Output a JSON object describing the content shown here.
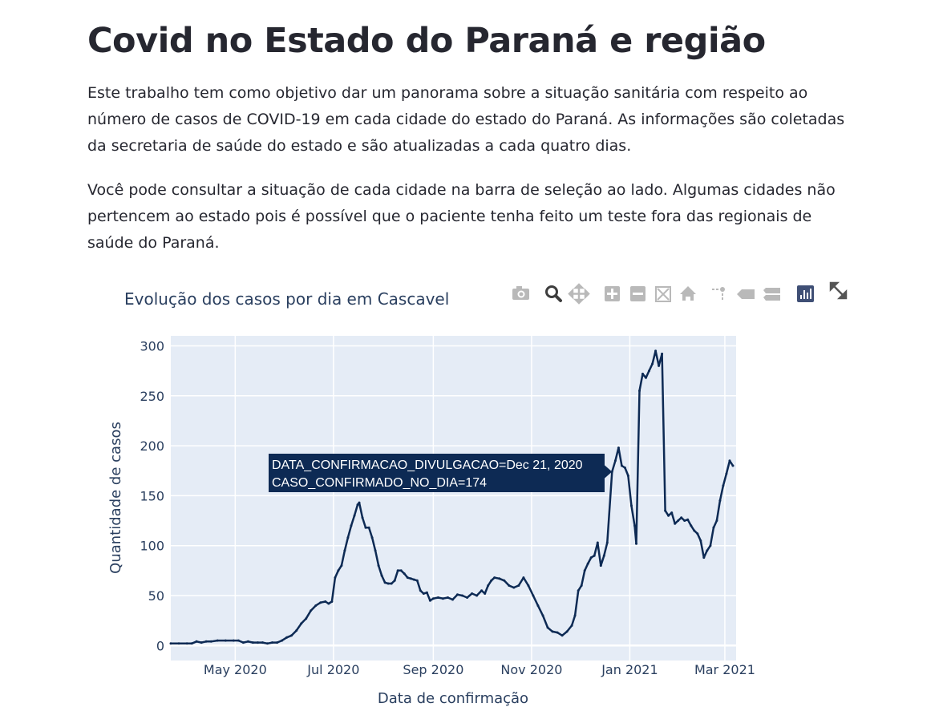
{
  "page": {
    "title": "Covid no Estado do Paraná e região",
    "paragraphs": [
      "Este trabalho tem como objetivo dar um panorama sobre a situação sanitária com respeito ao número de casos de COVID-19 em cada cidade do estado do Paraná. As informações são coletadas da secretaria de saúde do estado e são atualizadas a cada quatro dias.",
      "Você pode consultar a situação de cada cidade na barra de seleção ao lado. Algumas cidades não pertencem ao estado pois é possível que o paciente tenha feito um teste fora das regionais de saúde do Paraná."
    ]
  },
  "modebar": {
    "icons": [
      "camera-icon",
      "zoom-icon",
      "pan-icon",
      "zoom-in-icon",
      "zoom-out-icon",
      "autoscale-icon",
      "reset-axes-icon",
      "spike-lines-icon",
      "hover-closest-icon",
      "hover-compare-icon",
      "plotly-logo-icon",
      "fullscreen-icon"
    ]
  },
  "chart_data": {
    "type": "line",
    "title": "Evolução dos casos por dia em Cascavel",
    "xlabel": "Data de confirmação",
    "ylabel": "Quantidade de casos",
    "x_tick_labels": [
      "May 2020",
      "Jul 2020",
      "Sep 2020",
      "Nov 2020",
      "Jan 2021",
      "Mar 2021"
    ],
    "x_ticks": [
      "2020-05-01",
      "2020-07-01",
      "2020-09-01",
      "2020-11-01",
      "2021-01-01",
      "2021-03-01"
    ],
    "y_ticks": [
      0,
      50,
      100,
      150,
      200,
      250,
      300
    ],
    "xlim": [
      "2020-03-22",
      "2021-03-08"
    ],
    "ylim": [
      -15,
      310
    ],
    "grid": true,
    "line_color": "#0d2a54",
    "plot_bgcolor": "#e5ecf6",
    "tooltip": {
      "line1": "DATA_CONFIRMACAO_DIVULGACAO=Dec 21, 2020",
      "line2": "CASO_CONFIRMADO_NO_DIA=174",
      "x": "2020-12-21",
      "y": 174
    },
    "series": [
      {
        "points": [
          [
            "2020-03-22",
            2
          ],
          [
            "2020-03-27",
            2
          ],
          [
            "2020-04-01",
            2
          ],
          [
            "2020-04-04",
            2
          ],
          [
            "2020-04-07",
            4
          ],
          [
            "2020-04-10",
            3
          ],
          [
            "2020-04-13",
            4
          ],
          [
            "2020-04-16",
            4
          ],
          [
            "2020-04-20",
            5
          ],
          [
            "2020-04-25",
            5
          ],
          [
            "2020-04-30",
            5
          ],
          [
            "2020-05-03",
            5
          ],
          [
            "2020-05-06",
            3
          ],
          [
            "2020-05-09",
            4
          ],
          [
            "2020-05-12",
            3
          ],
          [
            "2020-05-15",
            3
          ],
          [
            "2020-05-18",
            3
          ],
          [
            "2020-05-21",
            2
          ],
          [
            "2020-05-24",
            3
          ],
          [
            "2020-05-27",
            3
          ],
          [
            "2020-05-30",
            5
          ],
          [
            "2020-06-02",
            8
          ],
          [
            "2020-06-05",
            10
          ],
          [
            "2020-06-08",
            15
          ],
          [
            "2020-06-11",
            22
          ],
          [
            "2020-06-14",
            27
          ],
          [
            "2020-06-17",
            35
          ],
          [
            "2020-06-20",
            40
          ],
          [
            "2020-06-23",
            43
          ],
          [
            "2020-06-26",
            44
          ],
          [
            "2020-06-28",
            42
          ],
          [
            "2020-06-30",
            44
          ],
          [
            "2020-07-02",
            68
          ],
          [
            "2020-07-04",
            75
          ],
          [
            "2020-07-06",
            80
          ],
          [
            "2020-07-08",
            95
          ],
          [
            "2020-07-10",
            108
          ],
          [
            "2020-07-12",
            120
          ],
          [
            "2020-07-14",
            130
          ],
          [
            "2020-07-16",
            141
          ],
          [
            "2020-07-17",
            143
          ],
          [
            "2020-07-19",
            128
          ],
          [
            "2020-07-21",
            118
          ],
          [
            "2020-07-23",
            118
          ],
          [
            "2020-07-25",
            108
          ],
          [
            "2020-07-27",
            95
          ],
          [
            "2020-07-29",
            80
          ],
          [
            "2020-07-31",
            70
          ],
          [
            "2020-08-02",
            63
          ],
          [
            "2020-08-04",
            62
          ],
          [
            "2020-08-06",
            62
          ],
          [
            "2020-08-08",
            65
          ],
          [
            "2020-08-10",
            75
          ],
          [
            "2020-08-12",
            75
          ],
          [
            "2020-08-14",
            72
          ],
          [
            "2020-08-16",
            68
          ],
          [
            "2020-08-18",
            67
          ],
          [
            "2020-08-20",
            66
          ],
          [
            "2020-08-22",
            65
          ],
          [
            "2020-08-24",
            55
          ],
          [
            "2020-08-26",
            52
          ],
          [
            "2020-08-28",
            53
          ],
          [
            "2020-08-30",
            45
          ],
          [
            "2020-09-01",
            47
          ],
          [
            "2020-09-04",
            48
          ],
          [
            "2020-09-07",
            47
          ],
          [
            "2020-09-10",
            48
          ],
          [
            "2020-09-13",
            46
          ],
          [
            "2020-09-16",
            51
          ],
          [
            "2020-09-19",
            50
          ],
          [
            "2020-09-22",
            48
          ],
          [
            "2020-09-25",
            52
          ],
          [
            "2020-09-28",
            50
          ],
          [
            "2020-10-01",
            55
          ],
          [
            "2020-10-03",
            52
          ],
          [
            "2020-10-05",
            60
          ],
          [
            "2020-10-07",
            65
          ],
          [
            "2020-10-09",
            68
          ],
          [
            "2020-10-12",
            67
          ],
          [
            "2020-10-15",
            65
          ],
          [
            "2020-10-18",
            60
          ],
          [
            "2020-10-21",
            58
          ],
          [
            "2020-10-24",
            60
          ],
          [
            "2020-10-27",
            68
          ],
          [
            "2020-10-30",
            60
          ],
          [
            "2020-11-02",
            50
          ],
          [
            "2020-11-05",
            40
          ],
          [
            "2020-11-08",
            30
          ],
          [
            "2020-11-11",
            18
          ],
          [
            "2020-11-14",
            14
          ],
          [
            "2020-11-17",
            13
          ],
          [
            "2020-11-20",
            10
          ],
          [
            "2020-11-23",
            14
          ],
          [
            "2020-11-26",
            20
          ],
          [
            "2020-11-28",
            30
          ],
          [
            "2020-11-30",
            55
          ],
          [
            "2020-12-02",
            60
          ],
          [
            "2020-12-04",
            75
          ],
          [
            "2020-12-06",
            82
          ],
          [
            "2020-12-08",
            88
          ],
          [
            "2020-12-10",
            90
          ],
          [
            "2020-12-12",
            103
          ],
          [
            "2020-12-14",
            80
          ],
          [
            "2020-12-16",
            90
          ],
          [
            "2020-12-18",
            103
          ],
          [
            "2020-12-21",
            174
          ],
          [
            "2020-12-23",
            185
          ],
          [
            "2020-12-25",
            198
          ],
          [
            "2020-12-27",
            180
          ],
          [
            "2020-12-29",
            178
          ],
          [
            "2020-12-31",
            170
          ],
          [
            "2021-01-02",
            140
          ],
          [
            "2021-01-04",
            120
          ],
          [
            "2021-01-05",
            102
          ],
          [
            "2021-01-07",
            255
          ],
          [
            "2021-01-09",
            272
          ],
          [
            "2021-01-11",
            268
          ],
          [
            "2021-01-13",
            275
          ],
          [
            "2021-01-15",
            282
          ],
          [
            "2021-01-17",
            295
          ],
          [
            "2021-01-19",
            280
          ],
          [
            "2021-01-21",
            292
          ],
          [
            "2021-01-23",
            135
          ],
          [
            "2021-01-25",
            130
          ],
          [
            "2021-01-27",
            133
          ],
          [
            "2021-01-29",
            122
          ],
          [
            "2021-01-31",
            125
          ],
          [
            "2021-02-02",
            128
          ],
          [
            "2021-02-04",
            125
          ],
          [
            "2021-02-06",
            126
          ],
          [
            "2021-02-08",
            120
          ],
          [
            "2021-02-10",
            115
          ],
          [
            "2021-02-12",
            112
          ],
          [
            "2021-02-14",
            105
          ],
          [
            "2021-02-16",
            88
          ],
          [
            "2021-02-18",
            95
          ],
          [
            "2021-02-20",
            100
          ],
          [
            "2021-02-22",
            118
          ],
          [
            "2021-02-24",
            125
          ],
          [
            "2021-02-26",
            145
          ],
          [
            "2021-02-28",
            160
          ],
          [
            "2021-03-02",
            172
          ],
          [
            "2021-03-04",
            185
          ],
          [
            "2021-03-06",
            180
          ]
        ]
      }
    ]
  }
}
